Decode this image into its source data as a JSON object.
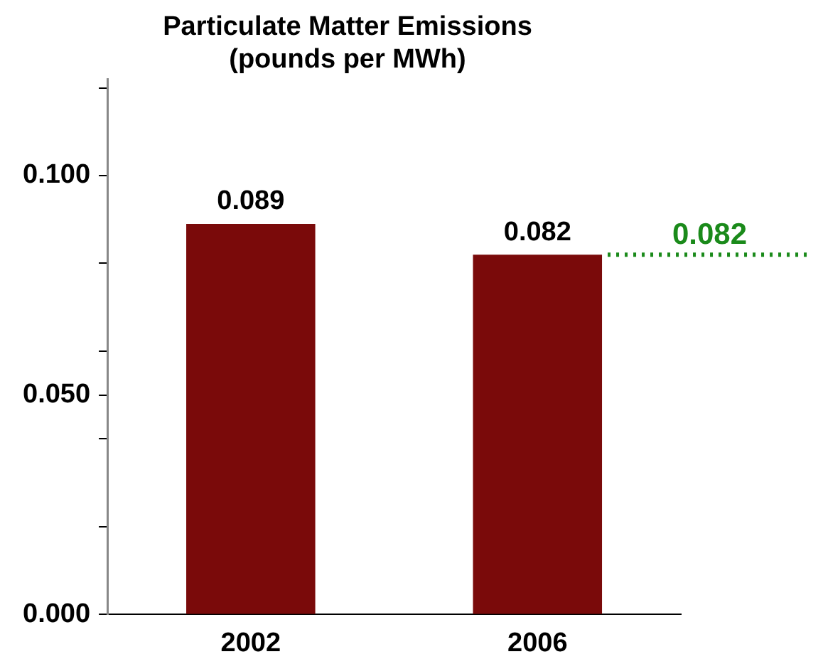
{
  "chart_data": {
    "type": "bar",
    "title": "Particulate Matter Emissions\n(pounds per MWh)",
    "categories": [
      "2002",
      "2006"
    ],
    "series": [
      {
        "color": "#7a0a0a",
        "values": [
          0.089,
          0.082
        ]
      }
    ],
    "ylim": [
      0,
      0.122
    ],
    "yticks": [
      {
        "value": 0,
        "label": "0.000"
      },
      {
        "value": 0.02,
        "label": null
      },
      {
        "value": 0.04,
        "label": null
      },
      {
        "value": 0.05,
        "label": "0.050"
      },
      {
        "value": 0.06,
        "label": null
      },
      {
        "value": 0.08,
        "label": null
      },
      {
        "value": 0.1,
        "label": "0.100"
      },
      {
        "value": 0.12,
        "label": null
      }
    ],
    "ref_lines": [
      {
        "axis": "y",
        "value": 0.082,
        "label": "0.082",
        "color": "#1a8a1a",
        "line_style": "dotted"
      }
    ],
    "data_labels": true,
    "grid": false,
    "legend": false
  }
}
